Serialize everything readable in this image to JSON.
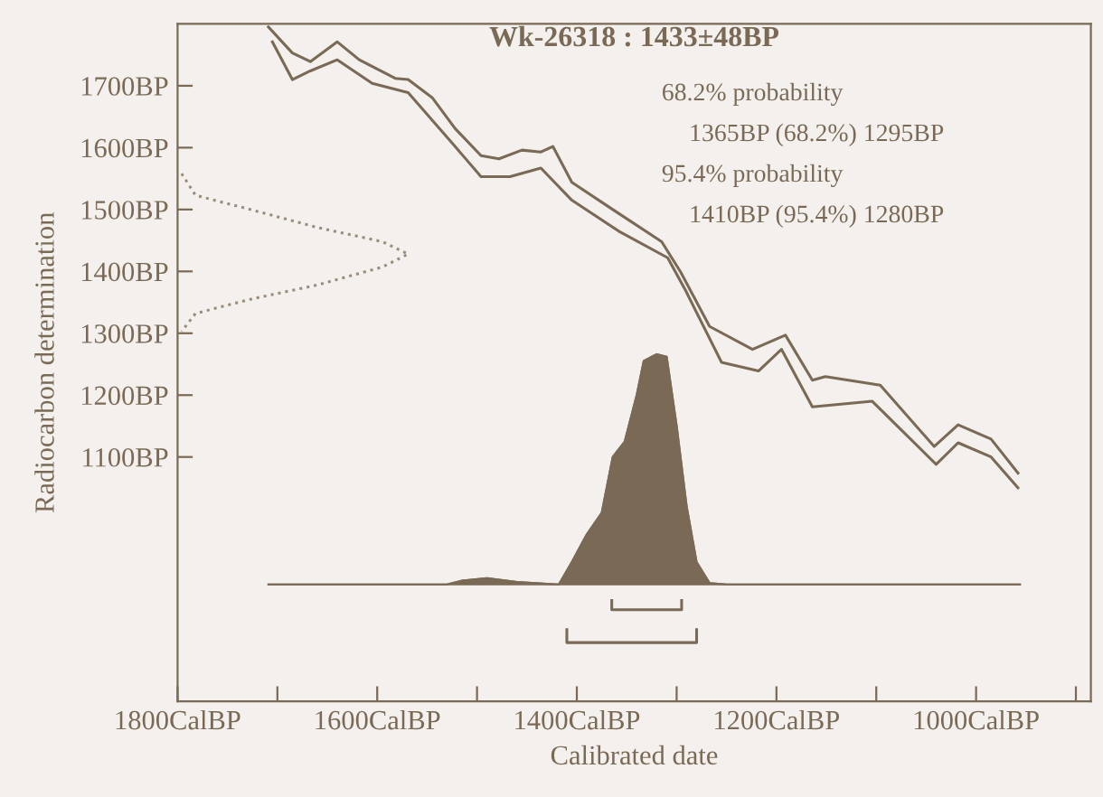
{
  "chart_data": {
    "type": "line",
    "title": "Wk-26318 : 1433±48BP",
    "xlabel": "Calibrated date",
    "ylabel": "Radiocarbon determination",
    "annotations": [
      "68.2% probability",
      "1365BP (68.2%) 1295BP",
      "95.4% probability",
      "1410BP (95.4%) 1280BP"
    ],
    "xlim": [
      1800,
      885
    ],
    "ylim": [
      705,
      1800
    ],
    "xticks": [
      {
        "value": 1800,
        "label": "1800CalBP"
      },
      {
        "value": 1700,
        "label": null
      },
      {
        "value": 1600,
        "label": "1600CalBP"
      },
      {
        "value": 1500,
        "label": null
      },
      {
        "value": 1400,
        "label": "1400CalBP"
      },
      {
        "value": 1300,
        "label": null
      },
      {
        "value": 1200,
        "label": "1200CalBP"
      },
      {
        "value": 1100,
        "label": null
      },
      {
        "value": 1000,
        "label": "1000CalBP"
      },
      {
        "value": 900,
        "label": null
      }
    ],
    "yticks": [
      {
        "value": 1100,
        "label": "1100BP"
      },
      {
        "value": 1200,
        "label": "1200BP"
      },
      {
        "value": 1300,
        "label": "1300BP"
      },
      {
        "value": 1400,
        "label": "1400BP"
      },
      {
        "value": 1500,
        "label": "1500BP"
      },
      {
        "value": 1600,
        "label": "1600BP"
      },
      {
        "value": 1700,
        "label": "1700BP"
      }
    ],
    "grid": false,
    "legend": false,
    "series": [
      {
        "color": "#7a6a55",
        "x": [
          1709,
          1685,
          1667,
          1640,
          1618,
          1582,
          1569,
          1545,
          1522,
          1496,
          1478,
          1455,
          1436,
          1424,
          1405,
          1364,
          1315,
          1296,
          1267,
          1224,
          1191,
          1164,
          1151,
          1096,
          1042,
          1018,
          985,
          958
        ],
        "values": [
          1795,
          1753,
          1739,
          1771,
          1742,
          1712,
          1710,
          1681,
          1631,
          1587,
          1582,
          1596,
          1593,
          1602,
          1544,
          1500,
          1448,
          1399,
          1311,
          1274,
          1297,
          1224,
          1230,
          1216,
          1117,
          1152,
          1129,
          1074
        ]
      },
      {
        "color": "#7a6a55",
        "x": [
          1705,
          1685,
          1667,
          1640,
          1605,
          1569,
          1522,
          1496,
          1467,
          1436,
          1405,
          1358,
          1309,
          1291,
          1255,
          1218,
          1195,
          1164,
          1104,
          1040,
          1018,
          985,
          958
        ],
        "values": [
          1771,
          1710,
          1724,
          1742,
          1704,
          1689,
          1602,
          1553,
          1553,
          1567,
          1515,
          1465,
          1422,
          1369,
          1253,
          1239,
          1274,
          1181,
          1190,
          1088,
          1123,
          1100,
          1050
        ]
      },
      {
        "color": "#9a8c7a",
        "line_style": "dotted",
        "x": [
          1796,
          1782,
          1727,
          1660,
          1595,
          1569,
          1595,
          1660,
          1727,
          1782,
          1796
        ],
        "values": [
          1558,
          1523,
          1500,
          1471,
          1448,
          1428,
          1407,
          1378,
          1355,
          1332,
          1303
        ]
      },
      {
        "type": "area",
        "color": "#7a6a55",
        "x": [
          1709,
          1530,
          1515,
          1490,
          1460,
          1430,
          1418,
          1405,
          1390,
          1375,
          1364,
          1352,
          1340,
          1333,
          1320,
          1310,
          1300,
          1290,
          1280,
          1267,
          1250,
          956
        ],
        "values": [
          894,
          894,
          900,
          904,
          898,
          895,
          894,
          930,
          975,
          1010,
          1100,
          1125,
          1200,
          1255,
          1266,
          1262,
          1150,
          1020,
          930,
          896,
          894,
          894
        ]
      },
      {
        "color": "#7a6a55",
        "x": [
          1365,
          1365,
          1295,
          1295
        ],
        "values": [
          868,
          853,
          853,
          868
        ]
      },
      {
        "color": "#7a6a55",
        "x": [
          1410,
          1410,
          1280,
          1280
        ],
        "values": [
          821,
          800,
          800,
          821
        ]
      }
    ]
  }
}
